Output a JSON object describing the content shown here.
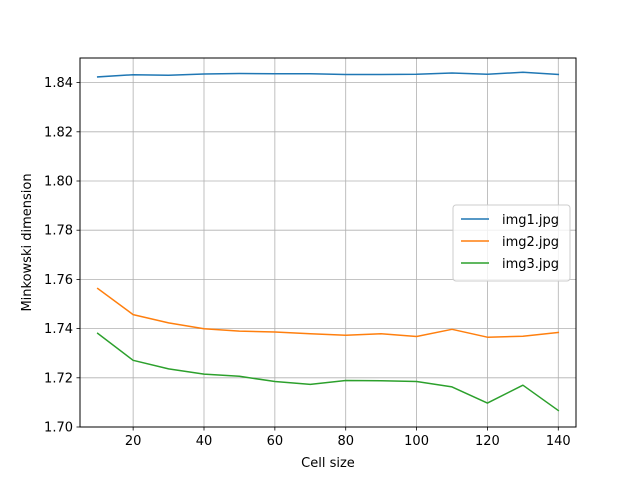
{
  "chart_data": {
    "type": "line",
    "title": "",
    "xlabel": "Cell size",
    "ylabel": "Minkowski dimension",
    "x": [
      10,
      20,
      30,
      40,
      50,
      60,
      70,
      80,
      90,
      100,
      110,
      120,
      130,
      140
    ],
    "xlim": [
      5,
      145
    ],
    "ylim": [
      1.7,
      1.85
    ],
    "xticks": [
      20,
      40,
      60,
      80,
      100,
      120,
      140
    ],
    "yticks": [
      1.7,
      1.72,
      1.74,
      1.76,
      1.78,
      1.8,
      1.82,
      1.84
    ],
    "grid": true,
    "legend_position": "center-right",
    "series": [
      {
        "name": "img1.jpg",
        "color": "#1f77b4",
        "values": [
          1.8423,
          1.8432,
          1.843,
          1.8435,
          1.8437,
          1.8436,
          1.8436,
          1.8433,
          1.8433,
          1.8434,
          1.8439,
          1.8434,
          1.8442,
          1.8433
        ]
      },
      {
        "name": "img2.jpg",
        "color": "#ff7f0e",
        "values": [
          1.7563,
          1.7457,
          1.7423,
          1.7399,
          1.739,
          1.7386,
          1.7379,
          1.7373,
          1.7379,
          1.7368,
          1.7397,
          1.7365,
          1.7369,
          1.7384
        ]
      },
      {
        "name": "img3.jpg",
        "color": "#2ca02c",
        "values": [
          1.7381,
          1.7271,
          1.7236,
          1.7215,
          1.7206,
          1.7185,
          1.7173,
          1.7189,
          1.7188,
          1.7185,
          1.7163,
          1.7097,
          1.717,
          1.7067
        ]
      }
    ]
  }
}
